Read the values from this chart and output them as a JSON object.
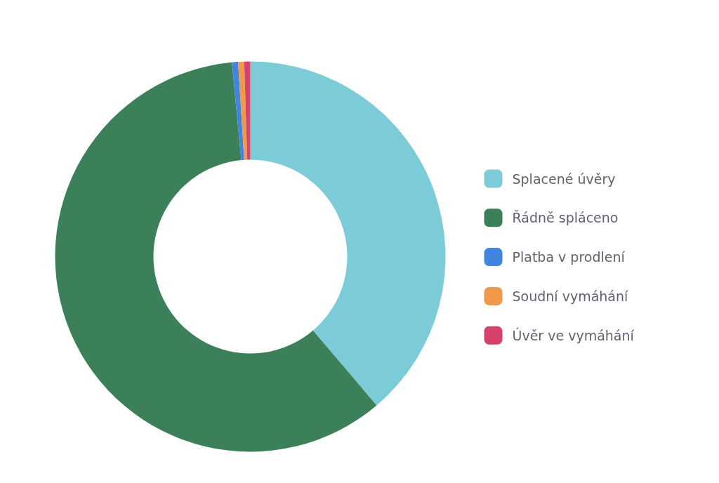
{
  "chart_data": {
    "type": "donut",
    "categories": [
      "Splacené úvěry",
      "Řádně spláceno",
      "Platba v prodlení",
      "Soudní vymáhání",
      "Úvěr ve vymáhání"
    ],
    "values": [
      38.8,
      59.7,
      0.5,
      0.5,
      0.5
    ],
    "colors": [
      "#7ccbd8",
      "#3b8059",
      "#4285e0",
      "#ef9a4a",
      "#d6426b"
    ],
    "legend": "right"
  }
}
